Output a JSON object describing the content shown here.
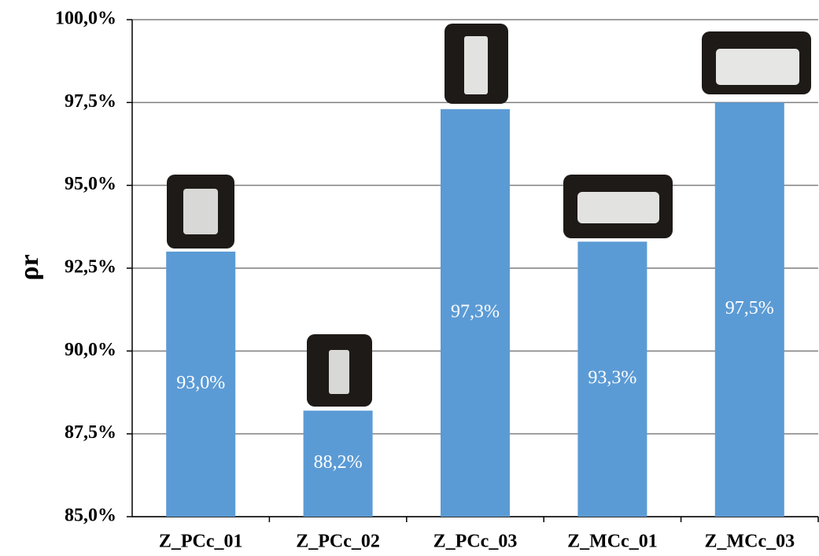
{
  "chart_data": {
    "type": "bar",
    "y_label": "ρr",
    "categories": [
      "Z_PCc_01",
      "Z_PCc_02",
      "Z_PCc_03",
      "Z_MCc_01",
      "Z_MCc_03"
    ],
    "values": [
      93.0,
      88.2,
      97.3,
      93.3,
      97.5
    ],
    "value_labels": [
      "93,0%",
      "88,2%",
      "97,3%",
      "93,3%",
      "97,5%"
    ],
    "color": "#5b9bd5",
    "ylim": [
      85,
      100
    ],
    "yticks": [
      {
        "value": 85,
        "label": "85,0%"
      },
      {
        "value": 87.5,
        "label": "87,5%"
      },
      {
        "value": 90,
        "label": "90,0%"
      },
      {
        "value": 92.5,
        "label": "92,5%"
      },
      {
        "value": 95,
        "label": "95,0%"
      },
      {
        "value": 97.5,
        "label": "97,5%"
      },
      {
        "value": 100,
        "label": "100,0%"
      }
    ],
    "grid": true
  }
}
